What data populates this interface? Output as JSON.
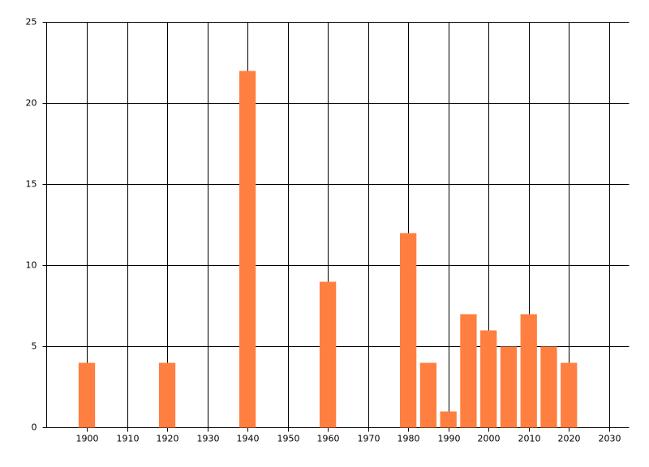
{
  "chart_data": {
    "type": "bar",
    "x": [
      1900,
      1920,
      1940,
      1960,
      1980,
      1985,
      1990,
      1995,
      2000,
      2005,
      2010,
      2015,
      2020
    ],
    "values": [
      4,
      4,
      22,
      9,
      12,
      4,
      1,
      7,
      6,
      5,
      7,
      5,
      4
    ],
    "color": "#ff7f40",
    "xlim": [
      1890,
      2035
    ],
    "xticks": [
      1900,
      1910,
      1920,
      1930,
      1940,
      1950,
      1960,
      1970,
      1980,
      1990,
      2000,
      2010,
      2020,
      2030
    ],
    "ylim": [
      0,
      25
    ],
    "yticks": [
      0,
      5,
      10,
      15,
      20,
      25
    ],
    "grid": true
  }
}
